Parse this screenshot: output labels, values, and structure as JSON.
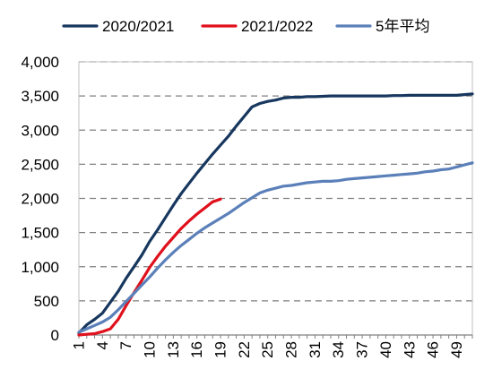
{
  "chart_data": {
    "type": "line",
    "title": "",
    "xlabel": "",
    "ylabel": "",
    "ylim": [
      0,
      4000
    ],
    "xlim": [
      1,
      51
    ],
    "grid": "horizontal dashed",
    "legend_position": "top",
    "y_ticks": [
      {
        "value": 0,
        "label": "0"
      },
      {
        "value": 500,
        "label": "500"
      },
      {
        "value": 1000,
        "label": "1,000"
      },
      {
        "value": 1500,
        "label": "1,500"
      },
      {
        "value": 2000,
        "label": "2,000"
      },
      {
        "value": 2500,
        "label": "2,500"
      },
      {
        "value": 3000,
        "label": "3,000"
      },
      {
        "value": 3500,
        "label": "3,500"
      },
      {
        "value": 4000,
        "label": "4,000"
      }
    ],
    "x_ticks": [
      {
        "value": 1,
        "label": "1"
      },
      {
        "value": 4,
        "label": "4"
      },
      {
        "value": 7,
        "label": "7"
      },
      {
        "value": 10,
        "label": "10"
      },
      {
        "value": 13,
        "label": "13"
      },
      {
        "value": 16,
        "label": "16"
      },
      {
        "value": 19,
        "label": "19"
      },
      {
        "value": 22,
        "label": "22"
      },
      {
        "value": 25,
        "label": "25"
      },
      {
        "value": 28,
        "label": "28"
      },
      {
        "value": 31,
        "label": "31"
      },
      {
        "value": 34,
        "label": "34"
      },
      {
        "value": 37,
        "label": "37"
      },
      {
        "value": 40,
        "label": "40"
      },
      {
        "value": 43,
        "label": "43"
      },
      {
        "value": 46,
        "label": "46"
      },
      {
        "value": 49,
        "label": "49"
      }
    ],
    "series": [
      {
        "name": "2020/2021",
        "color": "#17375E",
        "x": [
          1,
          2,
          3,
          4,
          5,
          6,
          7,
          8,
          9,
          10,
          11,
          12,
          13,
          14,
          15,
          16,
          17,
          18,
          19,
          20,
          21,
          22,
          23,
          24,
          25,
          26,
          27,
          28,
          29,
          30,
          31,
          32,
          33,
          34,
          35,
          36,
          37,
          38,
          39,
          40,
          41,
          42,
          43,
          44,
          45,
          46,
          47,
          48,
          49,
          50,
          51
        ],
        "y": [
          30,
          150,
          230,
          320,
          480,
          640,
          830,
          1000,
          1170,
          1370,
          1540,
          1720,
          1900,
          2070,
          2220,
          2370,
          2510,
          2650,
          2780,
          2910,
          3060,
          3200,
          3340,
          3390,
          3420,
          3440,
          3470,
          3480,
          3480,
          3490,
          3490,
          3495,
          3500,
          3500,
          3500,
          3500,
          3500,
          3500,
          3500,
          3500,
          3505,
          3505,
          3510,
          3510,
          3510,
          3510,
          3510,
          3510,
          3510,
          3520,
          3530
        ]
      },
      {
        "name": "2021/2022",
        "color": "#E0101C",
        "x": [
          1,
          2,
          3,
          4,
          5,
          6,
          7,
          8,
          9,
          10,
          11,
          12,
          13,
          14,
          15,
          16,
          17,
          18,
          19
        ],
        "y": [
          0,
          10,
          20,
          50,
          90,
          230,
          430,
          620,
          800,
          990,
          1150,
          1300,
          1430,
          1560,
          1670,
          1770,
          1860,
          1950,
          1990
        ]
      },
      {
        "name": "5年平均",
        "color": "#5B80B9",
        "x": [
          1,
          2,
          3,
          4,
          5,
          6,
          7,
          8,
          9,
          10,
          11,
          12,
          13,
          14,
          15,
          16,
          17,
          18,
          19,
          20,
          21,
          22,
          23,
          24,
          25,
          26,
          27,
          28,
          29,
          30,
          31,
          32,
          33,
          34,
          35,
          36,
          37,
          38,
          39,
          40,
          41,
          42,
          43,
          44,
          45,
          46,
          47,
          48,
          49,
          50,
          51
        ],
        "y": [
          40,
          90,
          140,
          190,
          260,
          370,
          490,
          610,
          730,
          850,
          980,
          1100,
          1210,
          1310,
          1400,
          1490,
          1570,
          1640,
          1710,
          1780,
          1860,
          1940,
          2010,
          2080,
          2120,
          2150,
          2180,
          2190,
          2210,
          2230,
          2240,
          2250,
          2250,
          2260,
          2280,
          2290,
          2300,
          2310,
          2320,
          2330,
          2340,
          2350,
          2360,
          2370,
          2390,
          2400,
          2420,
          2430,
          2460,
          2490,
          2520
        ]
      }
    ]
  }
}
